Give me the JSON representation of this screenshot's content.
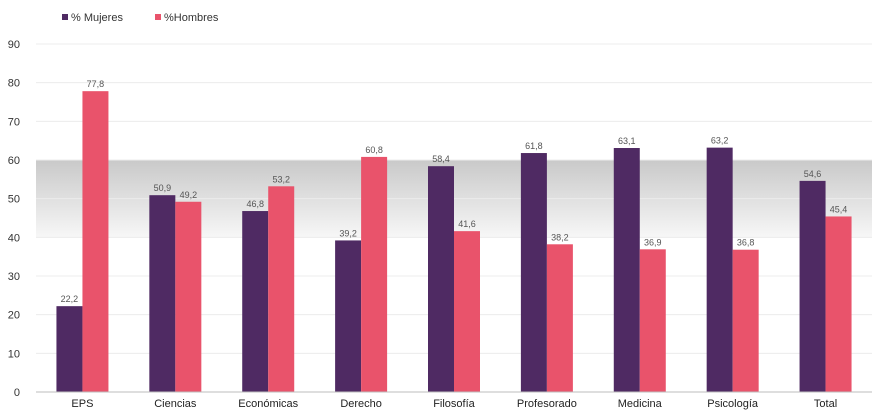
{
  "chart_data": {
    "type": "bar",
    "categories": [
      "EPS",
      "Ciencias",
      "Económicas",
      "Derecho",
      "Filosofía",
      "Profesorado",
      "Medicina",
      "Psicología",
      "Total"
    ],
    "series": [
      {
        "name": "% Mujeres",
        "color": "#4f2a63",
        "values": [
          22.2,
          50.9,
          46.8,
          39.2,
          58.4,
          61.8,
          63.1,
          63.2,
          54.6
        ],
        "labels": [
          "22,2",
          "50,9",
          "46,8",
          "39,2",
          "58,4",
          "61,8",
          "63,1",
          "63,2",
          "54,6"
        ]
      },
      {
        "name": "%Hombres",
        "color": "#e9536b",
        "values": [
          77.8,
          49.2,
          53.2,
          60.8,
          41.6,
          38.2,
          36.9,
          36.8,
          45.4
        ],
        "labels": [
          "77,8",
          "49,2",
          "53,2",
          "60,8",
          "41,6",
          "38,2",
          "36,9",
          "36,8",
          "45,4"
        ]
      }
    ],
    "yticks": [
      0,
      10,
      20,
      30,
      40,
      50,
      60,
      70,
      80,
      90
    ],
    "ylim": [
      0,
      90
    ],
    "band": [
      40,
      60
    ],
    "grid": true,
    "legend_position": "top-left"
  }
}
